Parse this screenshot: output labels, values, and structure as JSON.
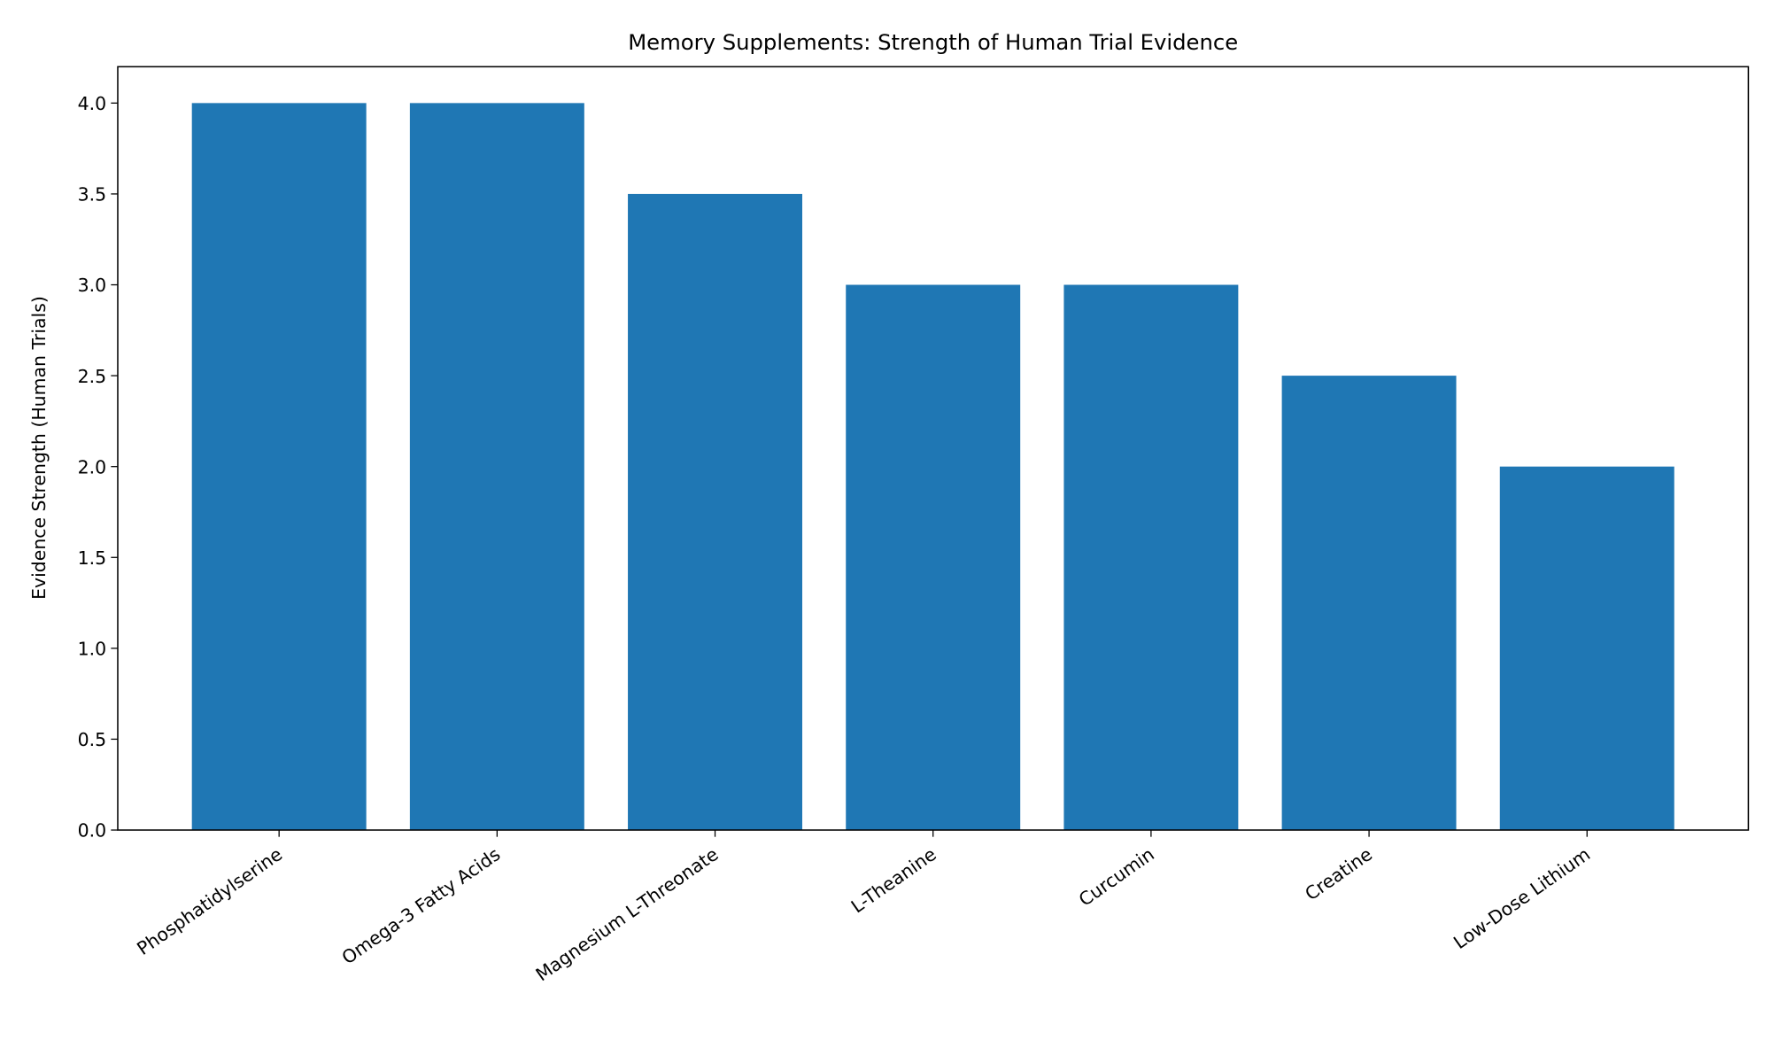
{
  "chart_data": {
    "type": "bar",
    "title": "Memory Supplements: Strength of Human Trial Evidence",
    "xlabel": "",
    "ylabel": "Evidence Strength (Human Trials)",
    "categories": [
      "Phosphatidylserine",
      "Omega-3 Fatty Acids",
      "Magnesium L-Threonate",
      "L-Theanine",
      "Curcumin",
      "Creatine",
      "Low-Dose Lithium"
    ],
    "values": [
      4.0,
      4.0,
      3.5,
      3.0,
      3.0,
      2.5,
      2.0
    ],
    "ylim": [
      0,
      4.2
    ],
    "yticks": [
      "0.0",
      "0.5",
      "1.0",
      "1.5",
      "2.0",
      "2.5",
      "3.0",
      "3.5",
      "4.0"
    ],
    "grid": false,
    "bar_color": "#1f77b4"
  }
}
